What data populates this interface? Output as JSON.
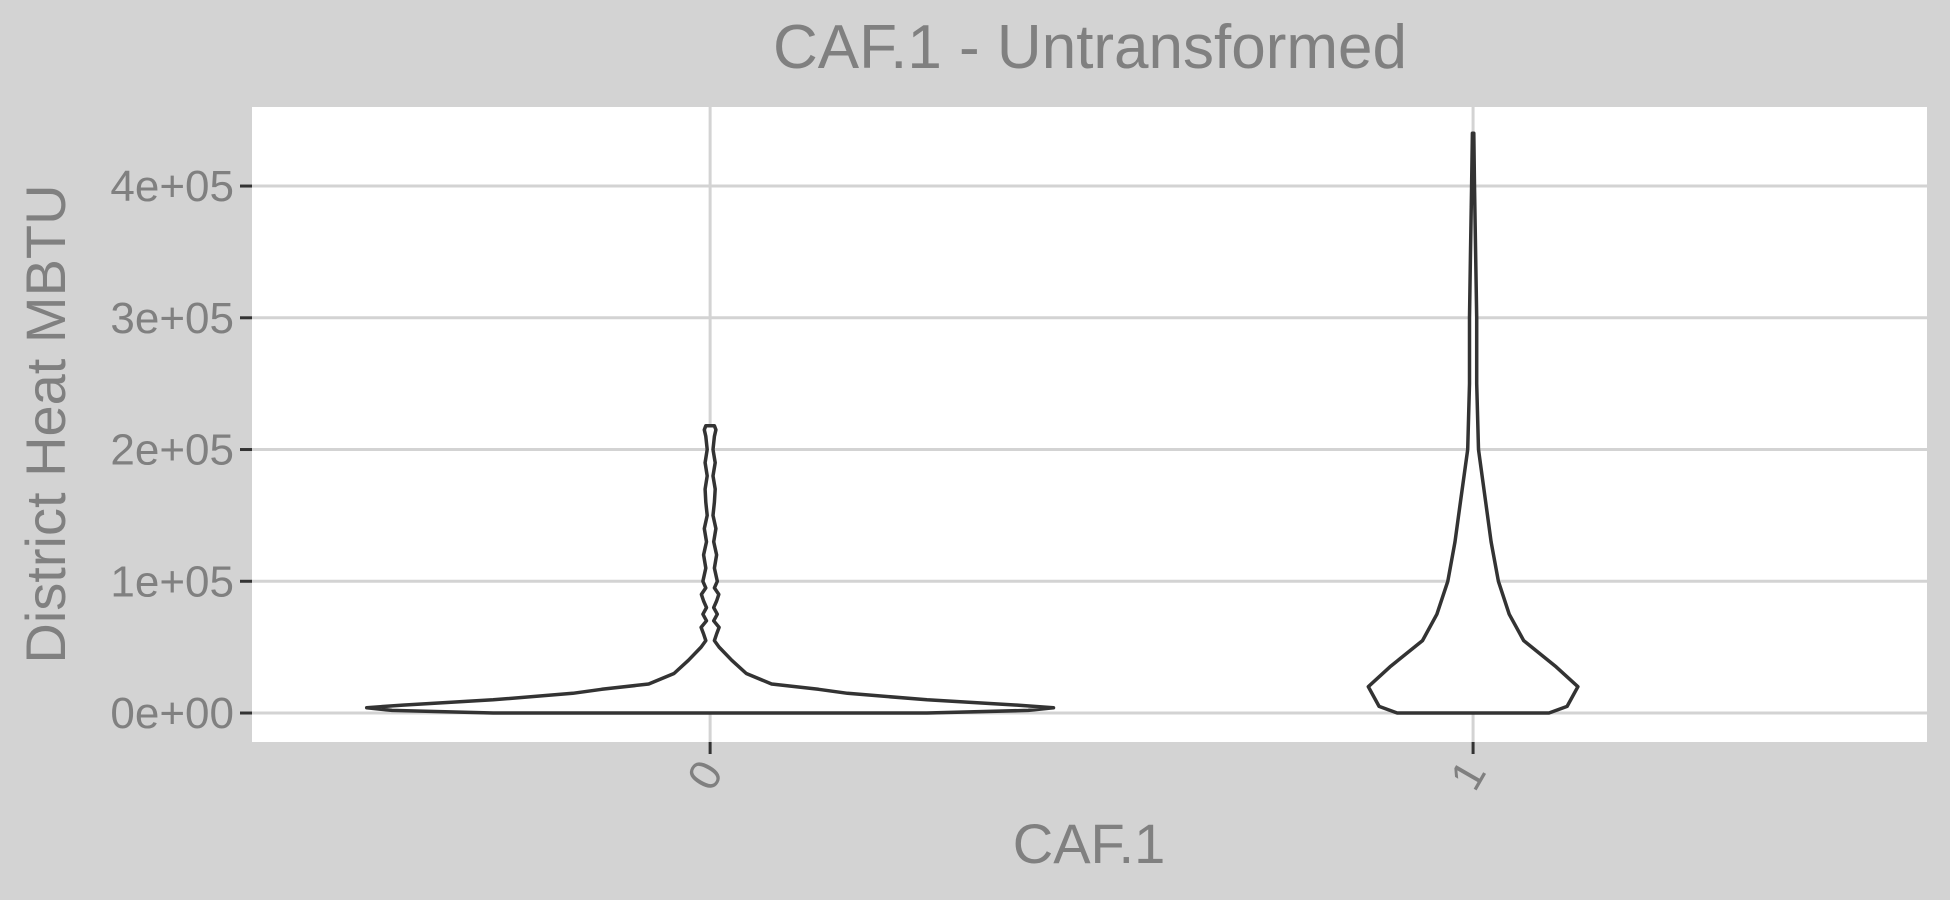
{
  "chart_data": {
    "type": "violin",
    "title": "CAF.1 - Untransformed",
    "xlabel": "CAF.1",
    "ylabel": "District Heat MBTU",
    "categories": [
      "0",
      "1"
    ],
    "y_tick_values": [
      0,
      100000,
      200000,
      300000,
      400000
    ],
    "y_tick_labels": [
      "0e+00",
      "1e+05",
      "2e+05",
      "3e+05",
      "4e+05"
    ],
    "ylim": [
      -22000,
      460000
    ],
    "grid": true,
    "legend": "none",
    "series": [
      {
        "category": "0",
        "y_min": 0,
        "y_max": 218000,
        "density_profile": [
          [
            0,
            0.6
          ],
          [
            2000,
            0.88
          ],
          [
            4000,
            0.95
          ],
          [
            6000,
            0.85
          ],
          [
            10000,
            0.6
          ],
          [
            15000,
            0.38
          ],
          [
            18000,
            0.3
          ],
          [
            22000,
            0.17
          ],
          [
            30000,
            0.1
          ],
          [
            40000,
            0.06
          ],
          [
            50000,
            0.025
          ],
          [
            55000,
            0.012
          ],
          [
            60000,
            0.018
          ],
          [
            65000,
            0.025
          ],
          [
            70000,
            0.01
          ],
          [
            75000,
            0.02
          ],
          [
            80000,
            0.01
          ],
          [
            85000,
            0.018
          ],
          [
            90000,
            0.024
          ],
          [
            95000,
            0.012
          ],
          [
            100000,
            0.02
          ],
          [
            110000,
            0.012
          ],
          [
            120000,
            0.018
          ],
          [
            130000,
            0.01
          ],
          [
            140000,
            0.016
          ],
          [
            150000,
            0.008
          ],
          [
            160000,
            0.012
          ],
          [
            170000,
            0.014
          ],
          [
            180000,
            0.008
          ],
          [
            190000,
            0.014
          ],
          [
            200000,
            0.008
          ],
          [
            210000,
            0.012
          ],
          [
            215000,
            0.016
          ],
          [
            218000,
            0.012
          ]
        ]
      },
      {
        "category": "1",
        "y_min": 0,
        "y_max": 440000,
        "density_profile": [
          [
            0,
            0.21
          ],
          [
            5000,
            0.26
          ],
          [
            20000,
            0.29
          ],
          [
            35000,
            0.23
          ],
          [
            55000,
            0.14
          ],
          [
            75000,
            0.1
          ],
          [
            100000,
            0.07
          ],
          [
            130000,
            0.05
          ],
          [
            160000,
            0.035
          ],
          [
            200000,
            0.015
          ],
          [
            250000,
            0.01
          ],
          [
            300000,
            0.01
          ],
          [
            350000,
            0.007
          ],
          [
            400000,
            0.004
          ],
          [
            440000,
            0.002
          ]
        ]
      }
    ]
  }
}
